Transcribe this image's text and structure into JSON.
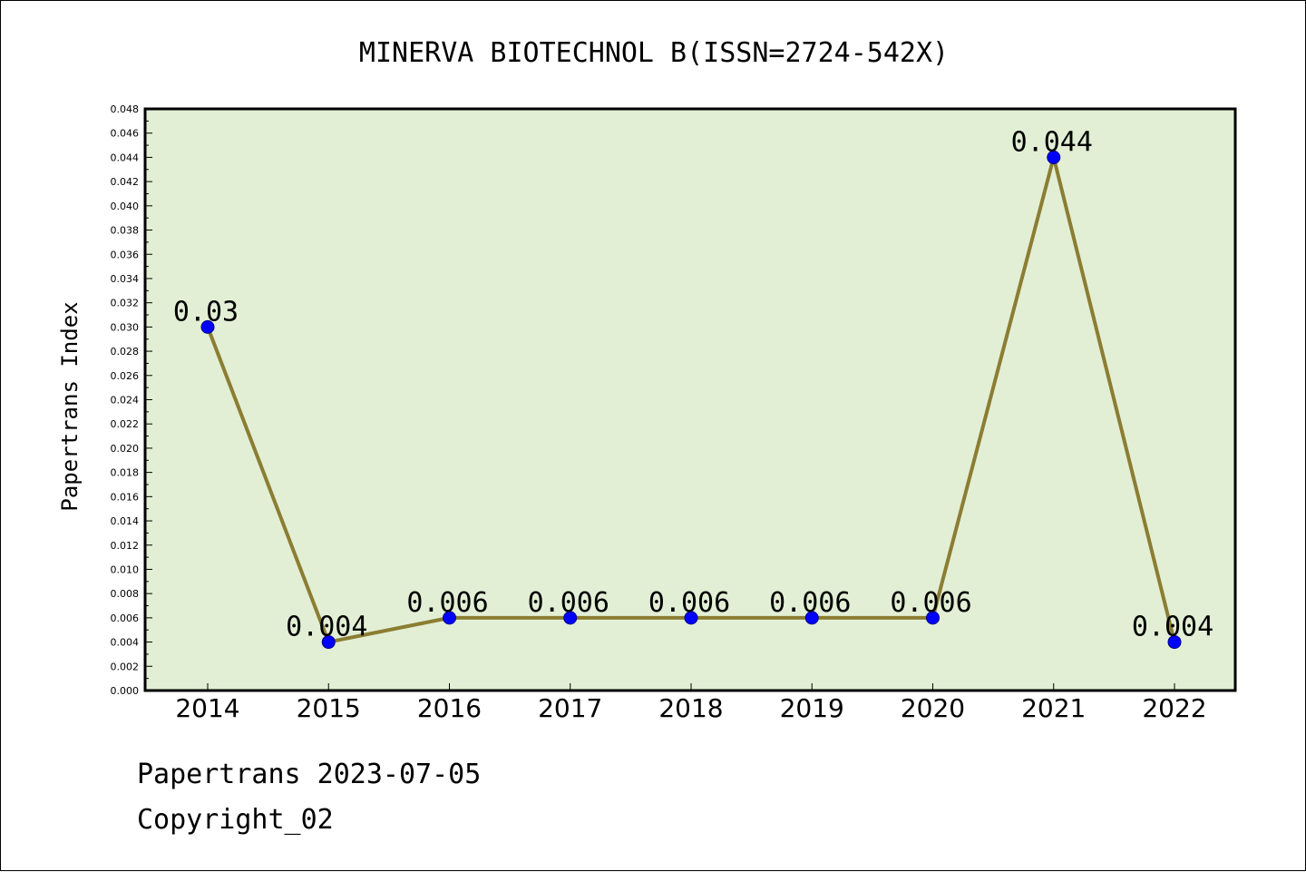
{
  "chart_data": {
    "type": "line",
    "title": "MINERVA BIOTECHNOL B(ISSN=2724-542X)",
    "xlabel": "",
    "ylabel": "Papertrans Index",
    "x": [
      "2014",
      "2015",
      "2016",
      "2017",
      "2018",
      "2019",
      "2020",
      "2021",
      "2022"
    ],
    "series": [
      {
        "values": [
          0.03,
          0.004,
          0.006,
          0.006,
          0.006,
          0.006,
          0.006,
          0.044,
          0.004
        ],
        "data_labels": [
          "0.03",
          "0.004",
          "0.006",
          "0.006",
          "0.006",
          "0.006",
          "0.006",
          "0.044",
          "0.004"
        ],
        "line_color": "#8b7d32",
        "marker_color": "#0000ff"
      }
    ],
    "ylim": [
      0,
      0.048
    ],
    "yticks": [
      "0.000",
      "0.002",
      "0.004",
      "0.006",
      "0.008",
      "0.010",
      "0.012",
      "0.014",
      "0.016",
      "0.018",
      "0.020",
      "0.022",
      "0.024",
      "0.026",
      "0.028",
      "0.030",
      "0.032",
      "0.034",
      "0.036",
      "0.038",
      "0.040",
      "0.042",
      "0.044",
      "0.046",
      "0.048"
    ],
    "plot_background": "#e2efd5",
    "grid": false
  },
  "footer": {
    "line1": "Papertrans 2023-07-05",
    "line2": "Copyright_02"
  }
}
